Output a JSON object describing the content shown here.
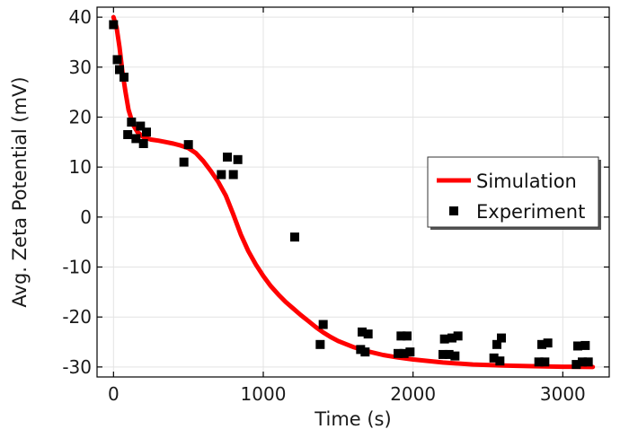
{
  "chart_data": {
    "type": "scatter",
    "title": "",
    "xlabel": "Time (s)",
    "ylabel": "Avg. Zeta Potential (mV)",
    "xlim": [
      -110,
      3310
    ],
    "ylim": [
      -32,
      42
    ],
    "xticks": [
      0,
      1000,
      2000,
      3000
    ],
    "yticks": [
      40,
      30,
      20,
      10,
      0,
      -10,
      -20,
      -30
    ],
    "xtick_labels": [
      "0",
      "1000",
      "2000",
      "3000"
    ],
    "ytick_labels": [
      "40",
      "30",
      "20",
      "10",
      "0",
      "-10",
      "-20",
      "-30"
    ],
    "grid": true,
    "legend_position": "right",
    "series": [
      {
        "name": "Simulation",
        "kind": "line",
        "color": "#ff0000",
        "x": [
          0,
          20,
          40,
          60,
          80,
          100,
          130,
          160,
          200,
          250,
          300,
          350,
          400,
          450,
          500,
          550,
          600,
          650,
          700,
          750,
          800,
          850,
          900,
          950,
          1000,
          1050,
          1100,
          1150,
          1200,
          1250,
          1300,
          1350,
          1400,
          1450,
          1500,
          1600,
          1700,
          1800,
          1900,
          2000,
          2200,
          2400,
          2600,
          2800,
          3000,
          3200
        ],
        "y": [
          40,
          38,
          34,
          29,
          25,
          21.5,
          18.5,
          17,
          16,
          15.5,
          15.3,
          15,
          14.7,
          14.3,
          13.8,
          12.8,
          11.2,
          9.2,
          7,
          4.3,
          0.5,
          -3.5,
          -6.8,
          -9.5,
          -11.8,
          -13.8,
          -15.5,
          -17,
          -18.3,
          -19.6,
          -20.8,
          -22,
          -23.1,
          -24,
          -24.8,
          -26,
          -26.9,
          -27.6,
          -28.1,
          -28.5,
          -29.1,
          -29.5,
          -29.7,
          -29.85,
          -29.95,
          -30
        ]
      },
      {
        "name": "Experiment",
        "kind": "scatter",
        "color": "#000000",
        "x": [
          0,
          25,
          40,
          70,
          95,
          120,
          150,
          180,
          200,
          220,
          470,
          500,
          720,
          760,
          800,
          830,
          1210,
          1380,
          1400,
          1650,
          1660,
          1680,
          1700,
          1900,
          1920,
          1940,
          1960,
          1980,
          2200,
          2210,
          2240,
          2260,
          2280,
          2300,
          2540,
          2560,
          2580,
          2590,
          2840,
          2860,
          2880,
          2900,
          3090,
          3100,
          3130,
          3150,
          3170
        ],
        "y": [
          38.5,
          31.5,
          29.5,
          28,
          16.5,
          19,
          15.7,
          18.2,
          14.7,
          17,
          11,
          14.5,
          8.5,
          12,
          8.5,
          11.5,
          -4,
          -25.5,
          -21.5,
          -26.5,
          -23,
          -27,
          -23.4,
          -27.3,
          -23.8,
          -27.3,
          -23.8,
          -27,
          -27.5,
          -24.4,
          -27.5,
          -24.2,
          -27.8,
          -23.8,
          -28.2,
          -25.5,
          -28.8,
          -24.2,
          -29,
          -25.5,
          -29,
          -25.2,
          -29.5,
          -25.8,
          -29,
          -25.7,
          -29
        ]
      }
    ]
  }
}
